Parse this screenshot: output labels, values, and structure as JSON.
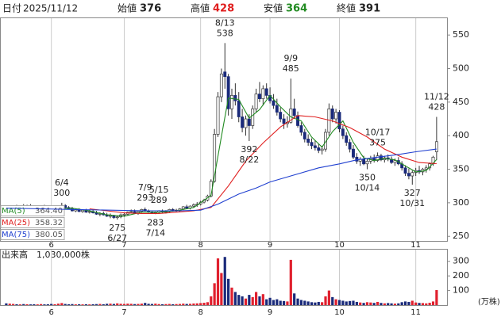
{
  "header": {
    "date_label": "日付",
    "date": "2025/11/12",
    "open_label": "始値",
    "open": 376,
    "high_label": "高値",
    "high": 428,
    "low_label": "安値",
    "low": 364,
    "close_label": "終値",
    "close": 391
  },
  "chart_data": [
    {
      "type": "candlestick",
      "up_color": "#ffffff",
      "down_color": "#1a2a7a",
      "edge_color": "#333333",
      "xlim": [
        -1.8,
        127
      ],
      "xticks": [
        {
          "value": 13,
          "label": "6"
        },
        {
          "value": 34,
          "label": "7"
        },
        {
          "value": 56,
          "label": "8"
        },
        {
          "value": 76,
          "label": "9"
        },
        {
          "value": 96,
          "label": "10"
        },
        {
          "value": 118,
          "label": "11"
        }
      ],
      "ylim": [
        242,
        575
      ],
      "yticks": [
        250,
        300,
        350,
        400,
        450,
        500,
        550
      ],
      "grid": true,
      "candles": [
        [
          292,
          294,
          290,
          291
        ],
        [
          291,
          294,
          289,
          292
        ],
        [
          292,
          296,
          291,
          295
        ],
        [
          295,
          297,
          292,
          293
        ],
        [
          293,
          296,
          291,
          295
        ],
        [
          295,
          298,
          293,
          294
        ],
        [
          294,
          297,
          292,
          296
        ],
        [
          296,
          298,
          293,
          294
        ],
        [
          294,
          296,
          291,
          292
        ],
        [
          292,
          295,
          290,
          293
        ],
        [
          293,
          296,
          291,
          295
        ],
        [
          295,
          297,
          292,
          293
        ],
        [
          293,
          295,
          290,
          292
        ],
        [
          292,
          294,
          288,
          290
        ],
        [
          290,
          292,
          287,
          291
        ],
        [
          291,
          296,
          290,
          295
        ],
        [
          295,
          300,
          294,
          296
        ],
        [
          296,
          298,
          292,
          293
        ],
        [
          293,
          295,
          290,
          291
        ],
        [
          291,
          294,
          287,
          288
        ],
        [
          288,
          291,
          286,
          290
        ],
        [
          290,
          292,
          286,
          287
        ],
        [
          287,
          290,
          285,
          289
        ],
        [
          289,
          291,
          285,
          286
        ],
        [
          286,
          290,
          284,
          287
        ],
        [
          287,
          290,
          284,
          285
        ],
        [
          285,
          288,
          282,
          283
        ],
        [
          283,
          286,
          280,
          284
        ],
        [
          284,
          287,
          281,
          282
        ],
        [
          282,
          285,
          279,
          280
        ],
        [
          280,
          284,
          277,
          281
        ],
        [
          281,
          282,
          276,
          278
        ],
        [
          278,
          281,
          275,
          279
        ],
        [
          279,
          284,
          277,
          282
        ],
        [
          282,
          285,
          279,
          283
        ],
        [
          283,
          287,
          281,
          286
        ],
        [
          286,
          290,
          284,
          287
        ],
        [
          287,
          290,
          284,
          285
        ],
        [
          285,
          288,
          282,
          287
        ],
        [
          287,
          291,
          285,
          290
        ],
        [
          290,
          293,
          287,
          288
        ],
        [
          288,
          290,
          285,
          286
        ],
        [
          286,
          288,
          284,
          285
        ],
        [
          285,
          287,
          283,
          286
        ],
        [
          286,
          289,
          284,
          288
        ],
        [
          288,
          290,
          285,
          286
        ],
        [
          286,
          289,
          284,
          287
        ],
        [
          287,
          291,
          285,
          290
        ],
        [
          290,
          292,
          287,
          288
        ],
        [
          288,
          291,
          286,
          289
        ],
        [
          289,
          292,
          286,
          291
        ],
        [
          291,
          295,
          289,
          294
        ],
        [
          294,
          297,
          291,
          292
        ],
        [
          292,
          296,
          290,
          295
        ],
        [
          295,
          299,
          293,
          297
        ],
        [
          297,
          301,
          294,
          298
        ],
        [
          298,
          303,
          296,
          301
        ],
        [
          301,
          306,
          299,
          304
        ],
        [
          304,
          312,
          302,
          310
        ],
        [
          310,
          335,
          308,
          332
        ],
        [
          332,
          410,
          330,
          402
        ],
        [
          402,
          465,
          398,
          458
        ],
        [
          458,
          500,
          450,
          492
        ],
        [
          495,
          538,
          470,
          488
        ],
        [
          488,
          492,
          430,
          440
        ],
        [
          440,
          470,
          425,
          460
        ],
        [
          460,
          478,
          445,
          452
        ],
        [
          452,
          465,
          420,
          428
        ],
        [
          428,
          440,
          405,
          412
        ],
        [
          412,
          430,
          400,
          425
        ],
        [
          425,
          432,
          392,
          415
        ],
        [
          415,
          445,
          410,
          440
        ],
        [
          440,
          470,
          435,
          462
        ],
        [
          462,
          480,
          450,
          455
        ],
        [
          455,
          475,
          445,
          470
        ],
        [
          470,
          478,
          455,
          460
        ],
        [
          460,
          472,
          448,
          452
        ],
        [
          452,
          462,
          440,
          445
        ],
        [
          445,
          455,
          430,
          435
        ],
        [
          435,
          442,
          420,
          425
        ],
        [
          425,
          432,
          410,
          418
        ],
        [
          418,
          429,
          412,
          420
        ],
        [
          420,
          485,
          418,
          440
        ],
        [
          440,
          455,
          425,
          430
        ],
        [
          430,
          436,
          412,
          415
        ],
        [
          415,
          420,
          400,
          405
        ],
        [
          405,
          410,
          390,
          395
        ],
        [
          395,
          402,
          385,
          390
        ],
        [
          390,
          396,
          380,
          385
        ],
        [
          385,
          393,
          378,
          382
        ],
        [
          382,
          388,
          374,
          378
        ],
        [
          378,
          385,
          372,
          380
        ],
        [
          380,
          410,
          376,
          405
        ],
        [
          405,
          448,
          400,
          440
        ],
        [
          440,
          445,
          420,
          425
        ],
        [
          425,
          440,
          418,
          435
        ],
        [
          435,
          438,
          405,
          410
        ],
        [
          410,
          415,
          395,
          400
        ],
        [
          400,
          405,
          385,
          390
        ],
        [
          390,
          395,
          375,
          380
        ],
        [
          380,
          386,
          365,
          368
        ],
        [
          368,
          374,
          358,
          362
        ],
        [
          362,
          368,
          355,
          365
        ],
        [
          365,
          370,
          356,
          358
        ],
        [
          358,
          366,
          350,
          362
        ],
        [
          362,
          370,
          358,
          366
        ],
        [
          366,
          372,
          360,
          363
        ],
        [
          363,
          375,
          361,
          370
        ],
        [
          370,
          373,
          362,
          364
        ],
        [
          364,
          370,
          360,
          367
        ],
        [
          367,
          372,
          362,
          365
        ],
        [
          365,
          369,
          358,
          360
        ],
        [
          360,
          366,
          355,
          363
        ],
        [
          363,
          368,
          356,
          358
        ],
        [
          358,
          362,
          348,
          352
        ],
        [
          352,
          356,
          340,
          344
        ],
        [
          344,
          351,
          335,
          340
        ],
        [
          340,
          348,
          327,
          345
        ],
        [
          345,
          352,
          340,
          348
        ],
        [
          348,
          355,
          343,
          346
        ],
        [
          346,
          352,
          341,
          350
        ],
        [
          350,
          356,
          345,
          352
        ],
        [
          352,
          360,
          348,
          358
        ],
        [
          358,
          370,
          355,
          368
        ],
        [
          376,
          428,
          364,
          391
        ]
      ],
      "series": [
        {
          "name": "MA(5)",
          "color": "#228b22",
          "x": [
            4,
            9,
            14,
            19,
            24,
            29,
            34,
            39,
            44,
            49,
            54,
            59,
            62,
            64,
            67,
            70,
            73,
            76,
            79,
            82,
            85,
            88,
            91,
            94,
            97,
            100,
            103,
            106,
            109,
            112,
            115,
            118,
            121,
            124
          ],
          "values": [
            293,
            294,
            291,
            292,
            288,
            282,
            280,
            286,
            286,
            288,
            293,
            311,
            399,
            456,
            454,
            426,
            439,
            460,
            443,
            428,
            422,
            398,
            383,
            406,
            422,
            390,
            367,
            363,
            366,
            364,
            355,
            346,
            348,
            364.4
          ],
          "value_labels": [
            null,
            null,
            null,
            null,
            null,
            null,
            null,
            null,
            null,
            null,
            null,
            null,
            null,
            null,
            null,
            null,
            null,
            null,
            null,
            null,
            null,
            null,
            null,
            null,
            null,
            null,
            null,
            null,
            null,
            null,
            null,
            null,
            null,
            "364.40"
          ]
        },
        {
          "name": "MA(25)",
          "color": "#e02020",
          "x": [
            24,
            29,
            34,
            39,
            44,
            49,
            54,
            59,
            64,
            69,
            74,
            79,
            84,
            89,
            94,
            99,
            104,
            109,
            114,
            119,
            124
          ],
          "values": [
            291,
            288,
            285,
            284,
            284,
            286,
            288,
            293,
            325,
            362,
            389,
            413,
            430,
            428,
            422,
            412,
            398,
            380,
            368,
            360,
            358.32
          ],
          "value_labels": [
            null,
            null,
            null,
            null,
            null,
            null,
            null,
            null,
            null,
            null,
            null,
            null,
            null,
            null,
            null,
            null,
            null,
            null,
            null,
            null,
            "358.32"
          ]
        },
        {
          "name": "MA(75)",
          "color": "#2040d0",
          "x": [
            0,
            10,
            20,
            30,
            40,
            50,
            56,
            61,
            67,
            72,
            76,
            82,
            90,
            96,
            101,
            107,
            113,
            118,
            124
          ],
          "values": [
            292,
            291,
            290,
            289,
            288,
            288,
            289,
            298,
            313,
            322,
            331,
            340,
            352,
            358,
            364,
            368,
            372,
            376,
            380.05
          ],
          "value_labels": [
            null,
            null,
            null,
            null,
            null,
            null,
            null,
            null,
            null,
            null,
            null,
            null,
            null,
            null,
            null,
            null,
            null,
            null,
            "380.05"
          ]
        }
      ],
      "annotations": [
        {
          "date": "5/15",
          "value": 289
        },
        {
          "date": "6/4",
          "value": 300
        },
        {
          "date": "6/27",
          "value": 275
        },
        {
          "date": "7/9",
          "value": 293
        },
        {
          "date": "7/14",
          "value": 283
        },
        {
          "date": "8/13",
          "value": 538
        },
        {
          "date": "8/22",
          "value": 392
        },
        {
          "date": "9/9",
          "value": 485
        },
        {
          "date": "10/14",
          "value": 350
        },
        {
          "date": "10/17",
          "value": 375
        },
        {
          "date": "10/31",
          "value": 327
        },
        {
          "date": "11/12",
          "value": 428
        }
      ]
    },
    {
      "type": "bar",
      "title": "出来高　1,030,000株",
      "unit": "(万株)",
      "up_color": "#e0202e",
      "down_color": "#1a2a7a",
      "xlim": [
        -1.8,
        127
      ],
      "xticks": [
        {
          "value": 13,
          "label": "6"
        },
        {
          "value": 34,
          "label": "7"
        },
        {
          "value": 56,
          "label": "8"
        },
        {
          "value": 76,
          "label": "9"
        },
        {
          "value": 96,
          "label": "10"
        },
        {
          "value": 118,
          "label": "11"
        }
      ],
      "ylim": [
        0,
        380
      ],
      "yticks": [
        100,
        200,
        300
      ],
      "grid": true,
      "values": [
        12,
        10,
        8,
        6,
        5,
        7,
        6,
        5,
        6,
        5,
        7,
        5,
        6,
        8,
        6,
        10,
        14,
        8,
        6,
        7,
        5,
        6,
        5,
        6,
        5,
        6,
        7,
        8,
        6,
        9,
        10,
        8,
        12,
        9,
        8,
        10,
        9,
        7,
        8,
        10,
        15,
        9,
        8,
        10,
        7,
        6,
        7,
        8,
        6,
        7,
        8,
        10,
        8,
        9,
        11,
        12,
        14,
        16,
        20,
        60,
        150,
        320,
        220,
        330,
        180,
        120,
        90,
        70,
        60,
        45,
        70,
        55,
        90,
        60,
        75,
        40,
        50,
        35,
        40,
        30,
        28,
        25,
        310,
        80,
        45,
        35,
        30,
        25,
        20,
        18,
        22,
        20,
        60,
        100,
        55,
        40,
        35,
        30,
        25,
        28,
        30,
        22,
        18,
        15,
        20,
        18,
        15,
        22,
        15,
        12,
        14,
        12,
        10,
        12,
        20,
        25,
        22,
        30,
        18,
        15,
        14,
        12,
        16,
        25,
        103
      ]
    }
  ]
}
